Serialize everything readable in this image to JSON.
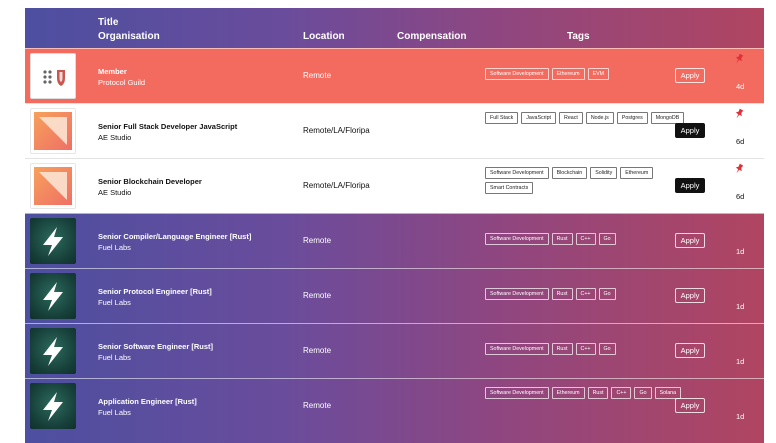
{
  "header": {
    "title": "Title",
    "organisation": "Organisation",
    "location": "Location",
    "compensation": "Compensation",
    "tags": "Tags"
  },
  "colors": {
    "featured": "#f36a5f",
    "pin": "#e0313a",
    "accent_start": "#4d4fa0",
    "accent_end": "#b04561"
  },
  "jobs": [
    {
      "title": "Member",
      "org": "Protocol Guild",
      "location": "Remote",
      "tags": [
        "Software Development",
        "Ethereum",
        "EVM"
      ],
      "apply": "Apply",
      "age": "4d",
      "logo": "protocol-guild-logo",
      "style": "featured",
      "pinned": true
    },
    {
      "title": "Senior Full Stack Developer JavaScript",
      "org": "AE Studio",
      "location": "Remote/LA/Floripa",
      "tags": [
        "Full Stack",
        "JavaScript",
        "React",
        "Node.js",
        "Postgres",
        "MongoDB"
      ],
      "apply": "Apply",
      "age": "6d",
      "logo": "ae-studio-logo",
      "style": "light",
      "pinned": true
    },
    {
      "title": "Senior Blockchain Developer",
      "org": "AE Studio",
      "location": "Remote/LA/Floripa",
      "tags": [
        "Software Development",
        "Blockchain",
        "Solidity",
        "Ethereum",
        "Smart Contracts"
      ],
      "apply": "Apply",
      "age": "6d",
      "logo": "ae-studio-logo",
      "style": "light",
      "pinned": true
    },
    {
      "title": "Senior Compiler/Language Engineer [Rust]",
      "org": "Fuel Labs",
      "location": "Remote",
      "tags": [
        "Software Development",
        "Rust",
        "C++",
        "Go"
      ],
      "apply": "Apply",
      "age": "1d",
      "logo": "fuel-labs-logo",
      "style": "dark",
      "pinned": false
    },
    {
      "title": "Senior Protocol Engineer [Rust]",
      "org": "Fuel Labs",
      "location": "Remote",
      "tags": [
        "Software Development",
        "Rust",
        "C++",
        "Go"
      ],
      "apply": "Apply",
      "age": "1d",
      "logo": "fuel-labs-logo",
      "style": "dark",
      "pinned": false
    },
    {
      "title": "Senior Software Engineer [Rust]",
      "org": "Fuel Labs",
      "location": "Remote",
      "tags": [
        "Software Development",
        "Rust",
        "C++",
        "Go"
      ],
      "apply": "Apply",
      "age": "1d",
      "logo": "fuel-labs-logo",
      "style": "dark",
      "pinned": false
    },
    {
      "title": "Application Engineer [Rust]",
      "org": "Fuel Labs",
      "location": "Remote",
      "tags": [
        "Software Development",
        "Ethereum",
        "Rust",
        "C++",
        "Go",
        "Solana"
      ],
      "apply": "Apply",
      "age": "1d",
      "logo": "fuel-labs-logo",
      "style": "dark",
      "pinned": false
    }
  ]
}
